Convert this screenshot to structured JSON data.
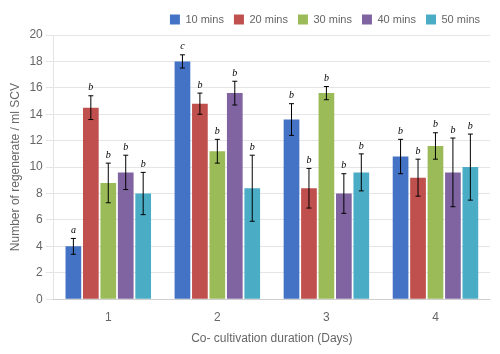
{
  "chart_data": {
    "type": "bar",
    "categories": [
      "1",
      "2",
      "3",
      "4"
    ],
    "series": [
      {
        "name": "10 mins",
        "color": "#4472C4",
        "values": [
          4.0,
          18.0,
          13.6,
          10.8
        ],
        "errors": [
          0.6,
          0.5,
          1.2,
          1.3
        ],
        "letters": [
          "a",
          "c",
          "b",
          "b"
        ]
      },
      {
        "name": "20 mins",
        "color": "#C0504D",
        "values": [
          14.5,
          14.8,
          8.4,
          9.2
        ],
        "errors": [
          0.9,
          0.8,
          1.5,
          1.4
        ],
        "letters": [
          "b",
          "b",
          "b",
          "b"
        ]
      },
      {
        "name": "30 mins",
        "color": "#9BBB59",
        "values": [
          8.8,
          11.2,
          15.6,
          11.6
        ],
        "errors": [
          1.5,
          0.9,
          0.5,
          1.0
        ],
        "letters": [
          "b",
          "b",
          "b",
          "b"
        ]
      },
      {
        "name": "40 mins",
        "color": "#8064A2",
        "values": [
          9.6,
          15.6,
          8.0,
          9.6
        ],
        "errors": [
          1.3,
          0.9,
          1.5,
          2.6
        ],
        "letters": [
          "b",
          "b",
          "b",
          "b"
        ]
      },
      {
        "name": "50 mins",
        "color": "#4BACC6",
        "values": [
          8.0,
          8.4,
          9.6,
          10.0
        ],
        "errors": [
          1.6,
          2.5,
          1.4,
          2.5
        ],
        "letters": [
          "b",
          "b",
          "b",
          "b"
        ]
      }
    ],
    "xlabel": "Co- cultivation duration (Days)",
    "ylabel": "Number of regenerate / ml SCV",
    "ylim": [
      0,
      20
    ],
    "yticks": [
      0,
      2,
      4,
      6,
      8,
      10,
      12,
      14,
      16,
      18,
      20
    ],
    "grid": true,
    "legend": "upper right"
  }
}
